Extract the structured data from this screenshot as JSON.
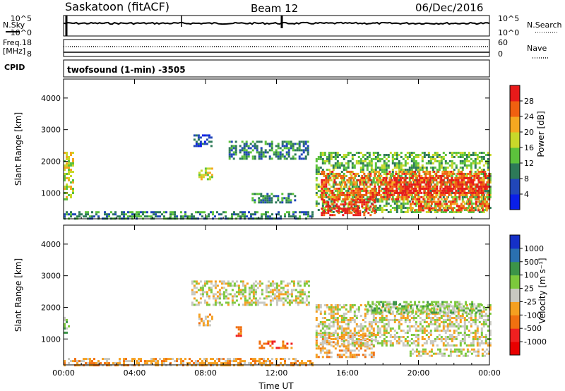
{
  "header": {
    "station": "Saskatoon (fitACF)",
    "beam": "Beam 12",
    "date": "06/Dec/2016"
  },
  "noise_panel": {
    "left_label": "N.Sky",
    "right_label": "N.Search",
    "ytick_top": "10^5",
    "ytick_bottom": "10^0",
    "level": 0.62
  },
  "freq_panel": {
    "label_top": "Freq.",
    "label_unit": "[MHz]",
    "ytick_top": "18",
    "ytick_bottom": "8",
    "right_label": "Nave",
    "right_tick_top": "60",
    "right_tick_bottom": "0",
    "cpid_label": "CPID",
    "mode_text": "twofsound (1-min) -3505"
  },
  "chart_data": [
    {
      "type": "heatmap",
      "name": "power",
      "xlabel": "",
      "ylabel": "Slant Range [km]",
      "x_ticks": [
        "00:00",
        "04:00",
        "08:00",
        "12:00",
        "16:00",
        "20:00",
        "00:00"
      ],
      "y_ticks": [
        1000,
        2000,
        3000,
        4000
      ],
      "xlim_hours": [
        0,
        24
      ],
      "ylim_km": [
        180,
        4600
      ],
      "colorbar": {
        "label": "Power [dB]",
        "ticks": [
          "4",
          "8",
          "12",
          "16",
          "20",
          "24",
          "28"
        ],
        "colors": [
          "#0a1fe8",
          "#2147b8",
          "#2d7a58",
          "#5cc23c",
          "#c8d82a",
          "#f5a820",
          "#f06010",
          "#e81a1a"
        ]
      },
      "regions": [
        {
          "t0": 0.0,
          "t1": 0.5,
          "r0": 800,
          "r1": 2300,
          "level": 4
        },
        {
          "t0": 0.0,
          "t1": 14.0,
          "r0": 180,
          "r1": 420,
          "level": 2
        },
        {
          "t0": 7.2,
          "t1": 8.3,
          "r0": 2500,
          "r1": 2850,
          "level": 1
        },
        {
          "t0": 7.6,
          "t1": 8.4,
          "r0": 1400,
          "r1": 1800,
          "level": 4
        },
        {
          "t0": 9.3,
          "t1": 13.8,
          "r0": 2050,
          "r1": 2650,
          "level": 2
        },
        {
          "t0": 10.6,
          "t1": 13.0,
          "r0": 700,
          "r1": 1000,
          "level": 2
        },
        {
          "t0": 14.2,
          "t1": 24.0,
          "r0": 400,
          "r1": 2300,
          "level": 3
        },
        {
          "t0": 14.5,
          "t1": 24.0,
          "r0": 800,
          "r1": 1700,
          "level": 6
        },
        {
          "t0": 14.5,
          "t1": 17.5,
          "r0": 300,
          "r1": 800,
          "level": 7
        },
        {
          "t0": 19.5,
          "t1": 24.0,
          "r0": 450,
          "r1": 750,
          "level": 6
        },
        {
          "t0": 18.0,
          "t1": 23.8,
          "r0": 1000,
          "r1": 1500,
          "level": 7
        }
      ]
    },
    {
      "type": "heatmap",
      "name": "velocity",
      "xlabel": "Time UT",
      "ylabel": "Slant Range [km]",
      "x_ticks": [
        "00:00",
        "04:00",
        "08:00",
        "12:00",
        "16:00",
        "20:00",
        "00:00"
      ],
      "y_ticks": [
        1000,
        2000,
        3000,
        4000
      ],
      "xlim_hours": [
        0,
        24
      ],
      "ylim_km": [
        180,
        4600
      ],
      "colorbar": {
        "label": "Velocity [m s⁻¹]",
        "ticks": [
          "1000",
          "500",
          "100",
          "25",
          "-25",
          "-100",
          "-500",
          "-1000"
        ],
        "colors": [
          "#1530c8",
          "#2a70b0",
          "#3c9448",
          "#7cc83c",
          "#c8c8c0",
          "#f5a020",
          "#f07010",
          "#f02020",
          "#e80000"
        ]
      },
      "regions": [
        {
          "t0": 0.0,
          "t1": 0.3,
          "r0": 1200,
          "r1": 1700,
          "level": 3
        },
        {
          "t0": 0.0,
          "t1": 14.0,
          "r0": 180,
          "r1": 400,
          "level": 5
        },
        {
          "t0": 7.2,
          "t1": 13.8,
          "r0": 2050,
          "r1": 2850,
          "level": 4
        },
        {
          "t0": 7.6,
          "t1": 8.4,
          "r0": 1400,
          "r1": 1800,
          "level": 5
        },
        {
          "t0": 9.7,
          "t1": 10.0,
          "r0": 1100,
          "r1": 1400,
          "level": 6
        },
        {
          "t0": 11.0,
          "t1": 12.9,
          "r0": 700,
          "r1": 950,
          "level": 6
        },
        {
          "t0": 14.2,
          "t1": 17.5,
          "r0": 400,
          "r1": 1200,
          "level": 5
        },
        {
          "t0": 14.2,
          "t1": 24.0,
          "r0": 800,
          "r1": 2100,
          "level": 4
        },
        {
          "t0": 17.0,
          "t1": 23.5,
          "r0": 1800,
          "r1": 2200,
          "level": 3
        },
        {
          "t0": 19.5,
          "t1": 24.0,
          "r0": 450,
          "r1": 700,
          "level": 4
        }
      ]
    }
  ]
}
